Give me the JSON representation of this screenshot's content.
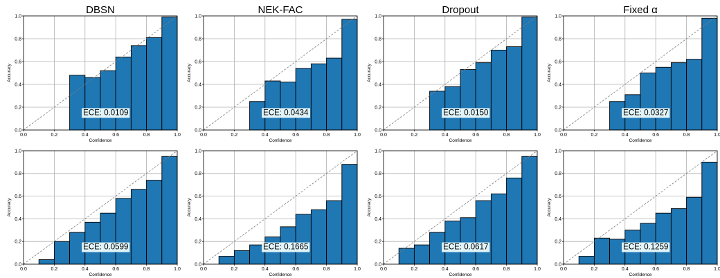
{
  "figure": {
    "bar_color": "#1f77b4",
    "bar_edge_color": "#000000",
    "grid_color": "#b0b0b0",
    "diagonal_color": "#7f7f7f",
    "ece_box_color": "#e0f3f8"
  },
  "chart_data": [
    {
      "type": "bar",
      "title": "DBSN",
      "xlabel": "Confidence",
      "ylabel": "Accuracy",
      "xlim": [
        0,
        1
      ],
      "ylim": [
        0,
        1
      ],
      "grid": true,
      "x_ticks": [
        "0.0",
        "0.2",
        "0.4",
        "0.6",
        "0.8",
        "1.0"
      ],
      "y_ticks": [
        "0.0",
        "0.2",
        "0.4",
        "0.6",
        "0.8",
        "1.0"
      ],
      "bins": [
        [
          0.3,
          0.4
        ],
        [
          0.4,
          0.5
        ],
        [
          0.5,
          0.6
        ],
        [
          0.6,
          0.7
        ],
        [
          0.7,
          0.8
        ],
        [
          0.8,
          0.9
        ],
        [
          0.9,
          1.0
        ]
      ],
      "values": [
        0.48,
        0.46,
        0.52,
        0.64,
        0.74,
        0.81,
        0.99
      ],
      "annotation": "ECE: 0.0109"
    },
    {
      "type": "bar",
      "title": "NEK-FAC",
      "xlabel": "Confidence",
      "ylabel": "Accuracy",
      "xlim": [
        0,
        1
      ],
      "ylim": [
        0,
        1
      ],
      "grid": true,
      "x_ticks": [
        "0.0",
        "0.2",
        "0.4",
        "0.6",
        "0.8",
        "1.0"
      ],
      "y_ticks": [
        "0.0",
        "0.2",
        "0.4",
        "0.6",
        "0.8",
        "1.0"
      ],
      "bins": [
        [
          0.3,
          0.4
        ],
        [
          0.4,
          0.5
        ],
        [
          0.5,
          0.6
        ],
        [
          0.6,
          0.7
        ],
        [
          0.7,
          0.8
        ],
        [
          0.8,
          0.9
        ],
        [
          0.9,
          1.0
        ]
      ],
      "values": [
        0.25,
        0.43,
        0.42,
        0.54,
        0.58,
        0.63,
        0.97
      ],
      "annotation": "ECE: 0.0434"
    },
    {
      "type": "bar",
      "title": "Dropout",
      "xlabel": "Confidence",
      "ylabel": "Accuracy",
      "xlim": [
        0,
        1
      ],
      "ylim": [
        0,
        1
      ],
      "grid": true,
      "x_ticks": [
        "0.0",
        "0.2",
        "0.4",
        "0.6",
        "0.8",
        "1.0"
      ],
      "y_ticks": [
        "0.0",
        "0.2",
        "0.4",
        "0.6",
        "0.8",
        "1.0"
      ],
      "bins": [
        [
          0.3,
          0.4
        ],
        [
          0.4,
          0.5
        ],
        [
          0.5,
          0.6
        ],
        [
          0.6,
          0.7
        ],
        [
          0.7,
          0.8
        ],
        [
          0.8,
          0.9
        ],
        [
          0.9,
          1.0
        ]
      ],
      "values": [
        0.34,
        0.38,
        0.53,
        0.59,
        0.7,
        0.73,
        0.99
      ],
      "annotation": "ECE: 0.0150"
    },
    {
      "type": "bar",
      "title": "Fixed α",
      "xlabel": "Confidence",
      "ylabel": "Accuracy",
      "xlim": [
        0,
        1
      ],
      "ylim": [
        0,
        1
      ],
      "grid": true,
      "x_ticks": [
        "0.0",
        "0.2",
        "0.4",
        "0.6",
        "0.8",
        "1.0"
      ],
      "y_ticks": [
        "0.0",
        "0.2",
        "0.4",
        "0.6",
        "0.8",
        "1.0"
      ],
      "bins": [
        [
          0.3,
          0.4
        ],
        [
          0.4,
          0.5
        ],
        [
          0.5,
          0.6
        ],
        [
          0.6,
          0.7
        ],
        [
          0.7,
          0.8
        ],
        [
          0.8,
          0.9
        ],
        [
          0.9,
          1.0
        ]
      ],
      "values": [
        0.25,
        0.31,
        0.5,
        0.55,
        0.59,
        0.62,
        0.98
      ],
      "annotation": "ECE: 0.0327"
    },
    {
      "type": "bar",
      "title": "",
      "xlabel": "Confidence",
      "ylabel": "Accuracy",
      "xlim": [
        0,
        1
      ],
      "ylim": [
        0,
        1
      ],
      "grid": true,
      "x_ticks": [
        "0.0",
        "0.2",
        "0.4",
        "0.6",
        "0.8",
        "1.0"
      ],
      "y_ticks": [
        "0.0",
        "0.2",
        "0.4",
        "0.6",
        "0.8",
        "1.0"
      ],
      "bins": [
        [
          0.1,
          0.2
        ],
        [
          0.2,
          0.3
        ],
        [
          0.3,
          0.4
        ],
        [
          0.4,
          0.5
        ],
        [
          0.5,
          0.6
        ],
        [
          0.6,
          0.7
        ],
        [
          0.7,
          0.8
        ],
        [
          0.8,
          0.9
        ],
        [
          0.9,
          1.0
        ]
      ],
      "values": [
        0.04,
        0.2,
        0.28,
        0.37,
        0.45,
        0.58,
        0.66,
        0.74,
        0.95
      ],
      "annotation": "ECE: 0.0599"
    },
    {
      "type": "bar",
      "title": "",
      "xlabel": "Confidence",
      "ylabel": "Accuracy",
      "xlim": [
        0,
        1
      ],
      "ylim": [
        0,
        1
      ],
      "grid": true,
      "x_ticks": [
        "0.0",
        "0.2",
        "0.4",
        "0.6",
        "0.8",
        "1.0"
      ],
      "y_ticks": [
        "0.0",
        "0.2",
        "0.4",
        "0.6",
        "0.8",
        "1.0"
      ],
      "bins": [
        [
          0.1,
          0.2
        ],
        [
          0.2,
          0.3
        ],
        [
          0.3,
          0.4
        ],
        [
          0.4,
          0.5
        ],
        [
          0.5,
          0.6
        ],
        [
          0.6,
          0.7
        ],
        [
          0.7,
          0.8
        ],
        [
          0.8,
          0.9
        ],
        [
          0.9,
          1.0
        ]
      ],
      "values": [
        0.07,
        0.12,
        0.17,
        0.24,
        0.33,
        0.44,
        0.48,
        0.56,
        0.88
      ],
      "annotation": "ECE: 0.1665"
    },
    {
      "type": "bar",
      "title": "",
      "xlabel": "Confidence",
      "ylabel": "Accuracy",
      "xlim": [
        0,
        1
      ],
      "ylim": [
        0,
        1
      ],
      "grid": true,
      "x_ticks": [
        "0.0",
        "0.2",
        "0.4",
        "0.6",
        "0.8",
        "1.0"
      ],
      "y_ticks": [
        "0.0",
        "0.2",
        "0.4",
        "0.6",
        "0.8",
        "1.0"
      ],
      "bins": [
        [
          0.1,
          0.2
        ],
        [
          0.2,
          0.3
        ],
        [
          0.3,
          0.4
        ],
        [
          0.4,
          0.5
        ],
        [
          0.5,
          0.6
        ],
        [
          0.6,
          0.7
        ],
        [
          0.7,
          0.8
        ],
        [
          0.8,
          0.9
        ],
        [
          0.9,
          1.0
        ]
      ],
      "values": [
        0.14,
        0.17,
        0.28,
        0.38,
        0.41,
        0.56,
        0.62,
        0.76,
        0.95
      ],
      "annotation": "ECE: 0.0617"
    },
    {
      "type": "bar",
      "title": "",
      "xlabel": "Confidence",
      "ylabel": "Accuracy",
      "xlim": [
        0,
        1
      ],
      "ylim": [
        0,
        1
      ],
      "grid": true,
      "x_ticks": [
        "0.0",
        "0.2",
        "0.4",
        "0.6",
        "0.8",
        "1.0"
      ],
      "y_ticks": [
        "0.0",
        "0.2",
        "0.4",
        "0.6",
        "0.8",
        "1.0"
      ],
      "bins": [
        [
          0.1,
          0.2
        ],
        [
          0.2,
          0.3
        ],
        [
          0.3,
          0.4
        ],
        [
          0.4,
          0.5
        ],
        [
          0.5,
          0.6
        ],
        [
          0.6,
          0.7
        ],
        [
          0.7,
          0.8
        ],
        [
          0.8,
          0.9
        ],
        [
          0.9,
          1.0
        ]
      ],
      "values": [
        0.07,
        0.23,
        0.22,
        0.3,
        0.36,
        0.45,
        0.49,
        0.59,
        0.9
      ],
      "annotation": "ECE: 0.1259"
    }
  ]
}
